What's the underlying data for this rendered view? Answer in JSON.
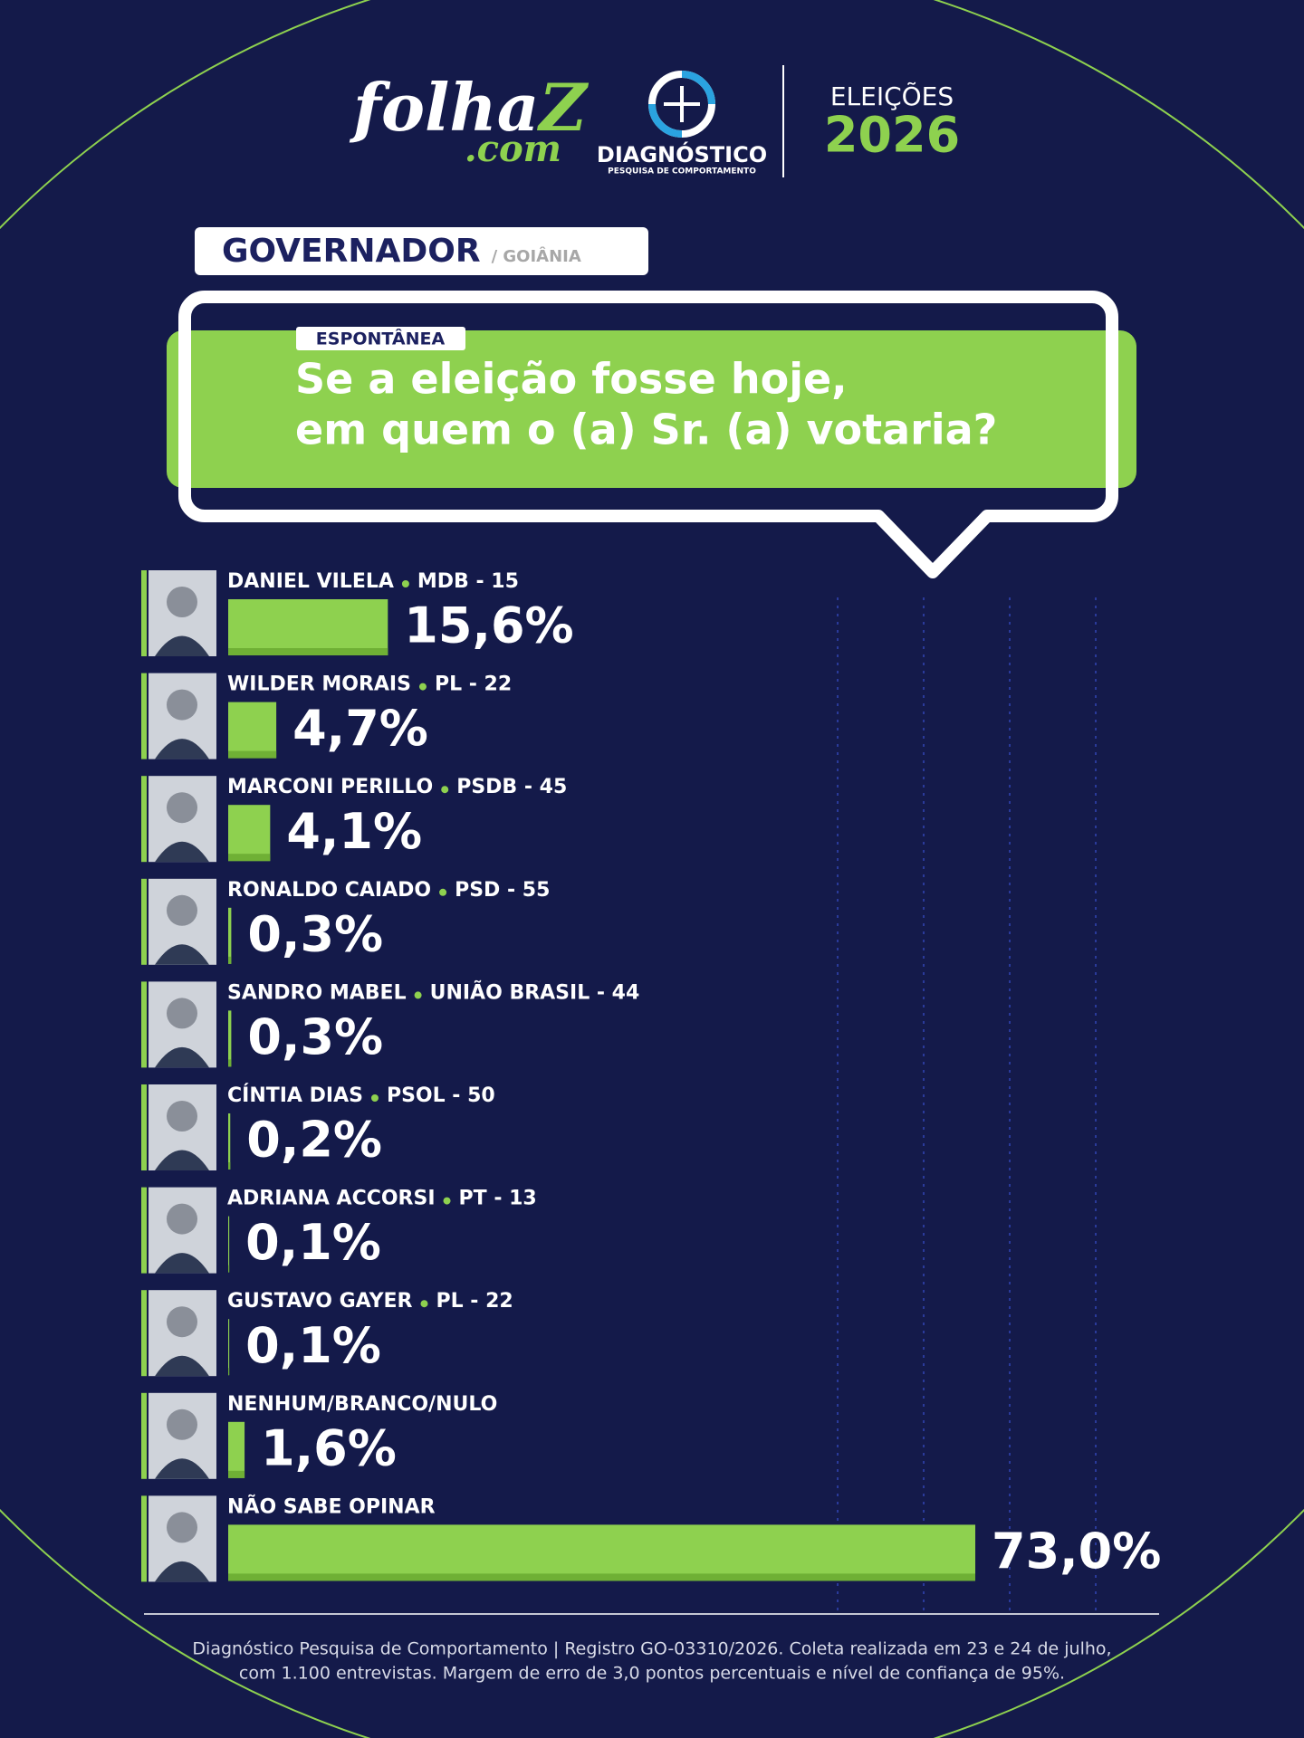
{
  "header": {
    "brand": "folha",
    "brand_mark": "Z",
    "brand_suffix": ".com",
    "partner": "DIAGNÓSTICO",
    "partner_tagline": "PESQUISA DE COMPORTAMENTO",
    "event": "ELEIÇÕES",
    "year": "2026"
  },
  "chart_data": {
    "type": "bar",
    "orientation": "horizontal",
    "title": "GOVERNADOR",
    "subtitle": "/ GOIÂNIA",
    "tag": "ESPONTÂNEA",
    "question_lines": [
      "Se a eleição fosse hoje,",
      "em quem o (a) Sr. (a) votaria?"
    ],
    "categories": [
      "DANIEL VILELA",
      "WILDER MORAIS",
      "MARCONI PERILLO",
      "RONALDO CAIADO",
      "SANDRO MABEL",
      "CÍNTIA DIAS",
      "ADRIANA ACCORSI",
      "GUSTAVO GAYER",
      "NENHUM/BRANCO/NULO",
      "NÃO SABE OPINAR"
    ],
    "parties": [
      "MDB - 15",
      "PL - 22",
      "PSDB - 45",
      "PSD - 55",
      "UNIÃO BRASIL - 44",
      "PSOL - 50",
      "PT - 13",
      "PL - 22",
      null,
      null
    ],
    "values": [
      15.6,
      4.7,
      4.1,
      0.3,
      0.3,
      0.2,
      0.1,
      0.1,
      1.6,
      73.0
    ],
    "value_labels": [
      "15,6%",
      "4,7%",
      "4,1%",
      "0,3%",
      "0,3%",
      "0,2%",
      "0,1%",
      "0,1%",
      "1,6%",
      "73,0%"
    ],
    "color": "#8ed14f"
  },
  "footer": {
    "lines": [
      "Diagnóstico Pesquisa de Comportamento | Registro GO-03310/2026. Coleta realizada em 23 e 24 de julho,",
      "com 1.100 entrevistas. Margem de erro de 3,0 pontos percentuais e nível de confiança de 95%."
    ]
  }
}
